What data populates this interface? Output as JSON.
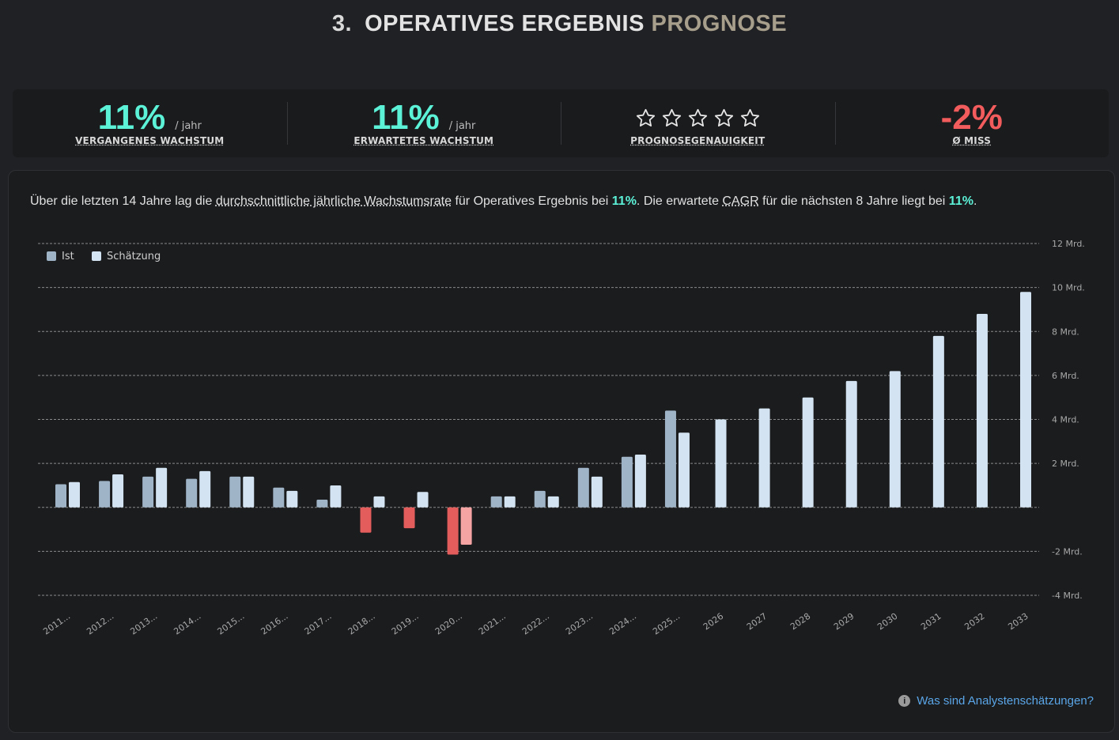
{
  "header": {
    "number": "3.",
    "title_main": "OPERATIVES ERGEBNIS",
    "title_accent": "PROGNOSE"
  },
  "stats": [
    {
      "value": "11%",
      "unit": "/ jahr",
      "label": "VERGANGENES WACHSTUM",
      "color": "#5cf2d8"
    },
    {
      "value": "11%",
      "unit": "/ jahr",
      "label": "ERWARTETES WACHSTUM",
      "color": "#5cf2d8"
    },
    {
      "stars_filled": 0,
      "stars_total": 5,
      "label": "PROGNOSEGENAUIGKEIT"
    },
    {
      "value": "-2%",
      "unit": "",
      "label": "Ø MISS",
      "color": "#f25c5c"
    }
  ],
  "description": {
    "p1": "Über die letzten 14 Jahre lag die ",
    "term1": "durchschnittliche jährliche Wachstumsrate",
    "p2": " für Operatives Ergebnis bei ",
    "v1": "11%",
    "p3": ". Die erwartete ",
    "term2": "CAGR",
    "p4": " für die nächsten 8 Jahre liegt bei ",
    "v2": "11%",
    "p5": "."
  },
  "chart_data": {
    "type": "bar",
    "legend": [
      {
        "name": "Ist",
        "color": "#9fb4c7"
      },
      {
        "name": "Schätzung",
        "color": "#d3e3f1"
      }
    ],
    "legend_position": "top-left",
    "y_axis_position": "right",
    "ylim": [
      -4,
      12
    ],
    "yticks": [
      12,
      10,
      8,
      6,
      4,
      2,
      0,
      -2,
      -4
    ],
    "ytick_labels": [
      "12 Mrd.",
      "10 Mrd.",
      "8 Mrd.",
      "6 Mrd.",
      "4 Mrd.",
      "2 Mrd.",
      "",
      "-2 Mrd.",
      "-4 Mrd."
    ],
    "grid": true,
    "negative_colors": {
      "ist": "#e35d5d",
      "schaetzung": "#f5a3a3"
    },
    "categories": [
      "2011...",
      "2012...",
      "2013...",
      "2014...",
      "2015...",
      "2016...",
      "2017...",
      "2018...",
      "2019...",
      "2020...",
      "2021...",
      "2022...",
      "2023...",
      "2024...",
      "2025...",
      "2026",
      "2027",
      "2028",
      "2029",
      "2030",
      "2031",
      "2032",
      "2033"
    ],
    "series": [
      {
        "name": "Ist",
        "values": [
          1.05,
          1.2,
          1.4,
          1.3,
          1.4,
          0.9,
          0.35,
          -1.15,
          -0.95,
          -2.15,
          null,
          0.75,
          1.8,
          2.3,
          4.4,
          null,
          null,
          null,
          null,
          null,
          null,
          null,
          null
        ]
      },
      {
        "name": "Schätzung",
        "values": [
          1.15,
          1.5,
          1.8,
          1.65,
          1.4,
          0.75,
          1.0,
          0.5,
          0.7,
          -1.7,
          0.5,
          0.5,
          1.4,
          2.4,
          3.4,
          4.0,
          4.5,
          5.0,
          5.75,
          6.2,
          7.8,
          8.8,
          9.8
        ]
      }
    ],
    "extra_bars": [
      {
        "category": "2021...",
        "series": "Ist",
        "value": 0.5
      }
    ]
  },
  "footer": {
    "info_icon": "info-icon",
    "link": "Was sind Analystenschätzungen?"
  }
}
